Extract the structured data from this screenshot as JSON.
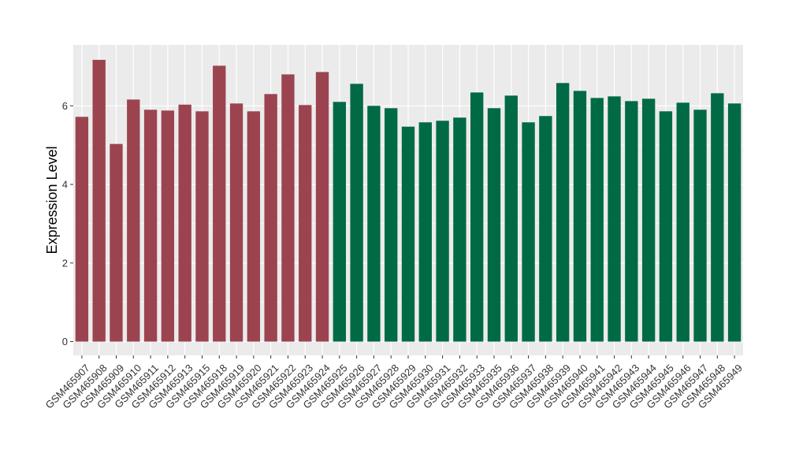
{
  "chart_data": {
    "type": "bar",
    "ylabel": "Expression Level",
    "xlabel": "",
    "ylim": [
      -0.35,
      7.55
    ],
    "yticks": [
      0,
      2,
      4,
      6
    ],
    "grid": true,
    "legend": "none",
    "colors": {
      "group1": "#9b4450",
      "group2": "#006a45",
      "panel": "#ebebeb",
      "grid": "#ffffff"
    },
    "categories": [
      "GSM465907",
      "GSM465908",
      "GSM465909",
      "GSM465910",
      "GSM465911",
      "GSM465912",
      "GSM465913",
      "GSM465915",
      "GSM465918",
      "GSM465919",
      "GSM465920",
      "GSM465921",
      "GSM465922",
      "GSM465923",
      "GSM465924",
      "GSM465925",
      "GSM465926",
      "GSM465927",
      "GSM465928",
      "GSM465929",
      "GSM465930",
      "GSM465931",
      "GSM465932",
      "GSM465933",
      "GSM465935",
      "GSM465936",
      "GSM465937",
      "GSM465938",
      "GSM465939",
      "GSM465940",
      "GSM465941",
      "GSM465942",
      "GSM465943",
      "GSM465944",
      "GSM465945",
      "GSM465946",
      "GSM465947",
      "GSM465948",
      "GSM465949"
    ],
    "values": [
      5.72,
      7.17,
      5.03,
      6.16,
      5.9,
      5.88,
      6.03,
      5.86,
      7.02,
      6.06,
      5.86,
      6.3,
      6.8,
      6.02,
      6.86,
      6.1,
      6.56,
      6.0,
      5.94,
      5.47,
      5.58,
      5.62,
      5.7,
      6.34,
      5.94,
      6.26,
      5.58,
      5.74,
      6.58,
      6.38,
      6.2,
      6.24,
      6.12,
      6.18,
      5.86,
      6.08,
      5.9,
      6.32,
      6.06
    ],
    "groups": [
      1,
      1,
      1,
      1,
      1,
      1,
      1,
      1,
      1,
      1,
      1,
      1,
      1,
      1,
      1,
      2,
      2,
      2,
      2,
      2,
      2,
      2,
      2,
      2,
      2,
      2,
      2,
      2,
      2,
      2,
      2,
      2,
      2,
      2,
      2,
      2,
      2,
      2,
      2
    ]
  }
}
